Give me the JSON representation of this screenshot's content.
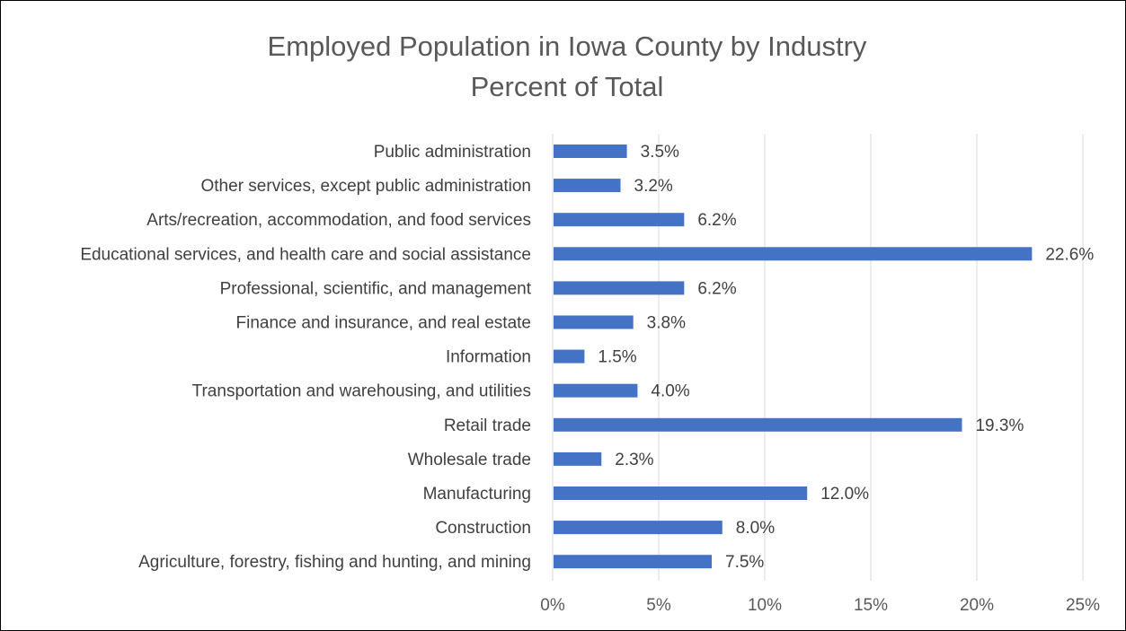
{
  "chart_data": {
    "type": "bar",
    "orientation": "horizontal",
    "title": "Employed Population in Iowa County by Industry",
    "subtitle": "Percent of Total",
    "xlabel": "",
    "ylabel": "",
    "categories": [
      "Public administration",
      "Other services, except public administration",
      "Arts/recreation, accommodation, and food services",
      "Educational services, and health care and social assistance",
      "Professional, scientific, and management",
      "Finance and insurance, and real estate",
      "Information",
      "Transportation and warehousing, and utilities",
      "Retail trade",
      "Wholesale trade",
      "Manufacturing",
      "Construction",
      "Agriculture, forestry, fishing and hunting, and mining"
    ],
    "values": [
      3.5,
      3.2,
      6.2,
      22.6,
      6.2,
      3.8,
      1.5,
      4.0,
      19.3,
      2.3,
      12.0,
      8.0,
      7.5
    ],
    "data_labels": [
      "3.5%",
      "3.2%",
      "6.2%",
      "22.6%",
      "6.2%",
      "3.8%",
      "1.5%",
      "4.0%",
      "19.3%",
      "2.3%",
      "12.0%",
      "8.0%",
      "7.5%"
    ],
    "xlim": [
      0,
      25
    ],
    "x_ticks": [
      0,
      5,
      10,
      15,
      20,
      25
    ],
    "x_tick_labels": [
      "0%",
      "5%",
      "10%",
      "15%",
      "20%",
      "25%"
    ],
    "bar_color": "#4472C4",
    "grid": true,
    "grid_color": "#D9D9D9",
    "legend": "none"
  }
}
